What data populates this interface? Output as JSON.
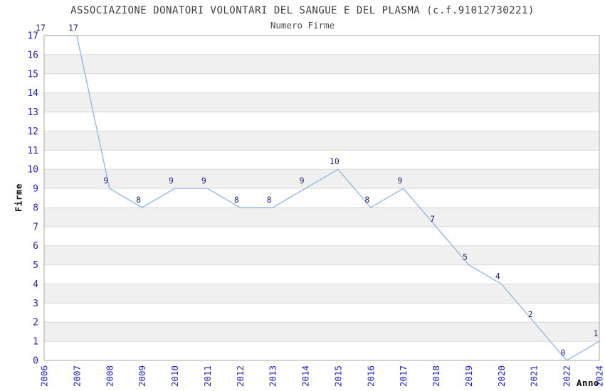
{
  "chart_data": {
    "type": "line",
    "title": "ASSOCIAZIONE DONATORI VOLONTARI DEL SANGUE E DEL PLASMA (c.f.91012730221)",
    "subtitle": "Numero Firme",
    "xlabel": "Anno",
    "ylabel": "Firme",
    "categories": [
      "2006",
      "2007",
      "2008",
      "2009",
      "2010",
      "2011",
      "2012",
      "2013",
      "2014",
      "2015",
      "2016",
      "2017",
      "2018",
      "2019",
      "2020",
      "2021",
      "2022",
      "2024"
    ],
    "values": [
      17,
      17,
      9,
      8,
      9,
      9,
      8,
      8,
      9,
      10,
      8,
      9,
      7,
      5,
      4,
      2,
      0,
      1
    ],
    "point_labels": [
      "17",
      "17",
      "9",
      "8",
      "9",
      "9",
      "8",
      "8",
      "9",
      "10",
      "8",
      "9",
      "7",
      "5",
      "4",
      "2",
      "0",
      "1"
    ],
    "ylim": [
      0,
      17
    ],
    "ytick_step": 1,
    "grid": "horizontal",
    "banded_background": true,
    "legend": "none",
    "colors": {
      "line": "#8cb6e8",
      "tick_label": "#2222cc",
      "point_label": "#252577",
      "band": "#f0f0f0",
      "gridline": "#d8d8d8",
      "plot_border": "#a8a8a8",
      "title": "#3d3d3d",
      "subtitle": "#4d4d4d",
      "axis_title": "#111111"
    }
  }
}
